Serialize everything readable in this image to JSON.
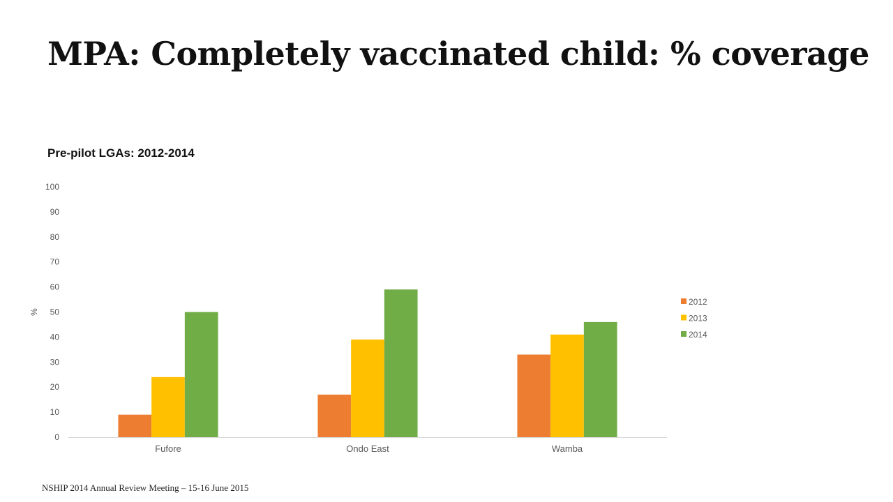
{
  "slide": {
    "title": "MPA: Completely vaccinated child: % coverage",
    "footer": "NSHIP 2014 Annual Review Meeting – 15-16 June 2015"
  },
  "chart_data": {
    "type": "bar",
    "title": "Pre-pilot LGAs: 2012-2014",
    "xlabel": "",
    "ylabel": "%",
    "categories": [
      "Fufore",
      "Ondo East",
      "Wamba"
    ],
    "series": [
      {
        "name": "2012",
        "values": [
          9,
          17,
          33
        ],
        "color": "#ED7D31"
      },
      {
        "name": "2013",
        "values": [
          24,
          39,
          41
        ],
        "color": "#FFC000"
      },
      {
        "name": "2014",
        "values": [
          50,
          59,
          46
        ],
        "color": "#70AD47"
      }
    ],
    "ylim": [
      0,
      100
    ],
    "yticks": [
      0,
      10,
      20,
      30,
      40,
      50,
      60,
      70,
      80,
      90,
      100
    ],
    "grid": false,
    "legend_position": "right"
  }
}
